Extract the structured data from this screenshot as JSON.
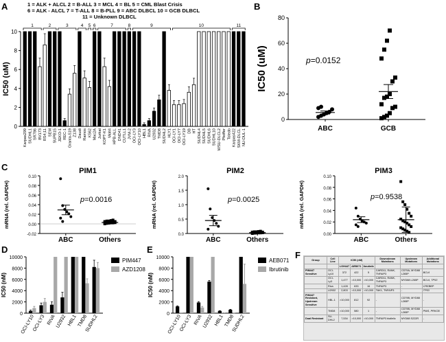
{
  "figure_labels": {
    "A": "A",
    "B": "B",
    "C": "C",
    "D": "D",
    "E": "E",
    "F": "F"
  },
  "legend_lines": [
    "1 = ALK + ALCL  2 = B-ALL  3 = MCL  4 = BL  5 = CML Blast Crisis",
    "6 = ALK - ALCL  7 = T-ALL  8 = B-PLL  9 = ABC DLBCL  10 = GCB DLBCL",
    "11 = Unknown DLBCL"
  ],
  "chart_data": [
    {
      "id": "A",
      "type": "bar",
      "title": "",
      "ylabel": "IC50 (uM)",
      "ylim": [
        0,
        10
      ],
      "yticks": [
        0,
        2,
        4,
        6,
        8,
        10
      ],
      "group_labels": [
        "1",
        "2",
        "3",
        "4",
        "5",
        "6",
        "7",
        "8",
        "9",
        "10",
        "11"
      ],
      "group_sizes": [
        4,
        3,
        4,
        2,
        1,
        1,
        6,
        1,
        8,
        12,
        3
      ],
      "categories": [
        "Karpas299",
        "SUDHL1",
        "SR786",
        "BV173",
        "RS4;11",
        "SEM",
        "SUPB15",
        "JEKO-1",
        "REC-1",
        "Granta-519",
        "Z138",
        "Daudi",
        "Ramos",
        "K562",
        "Mac2A",
        "Jurkat",
        "KOPT-K1",
        "Molt4",
        "HPB-ALL",
        "DND41",
        "CUTLL1",
        "JVM-2",
        "OCI-LY3",
        "OCI-LY10",
        "HBL1",
        "RIVA",
        "U2932",
        "TMD8",
        "SUDHL2",
        "HLY1",
        "OCI-LY1",
        "OCI-LY7",
        "OCI-LY19",
        "DB",
        "HT",
        "SUDHL4",
        "SUDHL5",
        "SUDHL6",
        "SUDHL10",
        "WSU-DLCL2",
        "Pfeiffer",
        "Toledo",
        "Karpas422",
        "SKM-DLCL",
        "NU-DUL-1"
      ],
      "values": [
        10,
        10,
        10,
        6.3,
        8.6,
        10,
        10,
        10,
        0.6,
        3.4,
        5.6,
        10,
        5.1,
        4.1,
        10,
        10,
        6.3,
        4.2,
        10,
        10,
        10,
        10,
        10,
        10,
        0.2,
        0.6,
        1.6,
        2.8,
        10,
        3.8,
        2.3,
        2.3,
        2.4,
        3.6,
        4.4,
        10,
        10,
        10,
        10,
        10,
        10,
        10,
        10,
        10,
        10
      ],
      "fill": [
        "black",
        "black",
        "black",
        "white",
        "white",
        "black",
        "black",
        "black",
        "black",
        "white",
        "white",
        "black",
        "white",
        "white",
        "black",
        "black",
        "white",
        "white",
        "black",
        "black",
        "black",
        "black",
        "black",
        "black",
        "black",
        "black",
        "black",
        "black",
        "black",
        "white",
        "white",
        "white",
        "white",
        "white",
        "white",
        "white",
        "white",
        "white",
        "white",
        "white",
        "white",
        "white",
        "black",
        "black",
        "black"
      ]
    },
    {
      "id": "B",
      "type": "scatter",
      "ylabel": "IC50 (uM)",
      "ylim": [
        0,
        80
      ],
      "yticks": [
        0,
        20,
        40,
        60,
        80
      ],
      "categories": [
        "ABC",
        "GCB"
      ],
      "series": [
        {
          "name": "ABC",
          "values": [
            2,
            3,
            4,
            5,
            6,
            8,
            9,
            10
          ]
        },
        {
          "name": "GCB",
          "values": [
            1,
            2,
            3,
            5,
            9,
            10,
            12,
            17,
            18,
            20,
            30,
            33,
            48,
            55,
            62,
            70
          ]
        }
      ],
      "means": [
        5.5,
        22
      ],
      "sem": [
        1.2,
        5.5
      ],
      "annotation": "p=0.0152"
    },
    {
      "id": "C1",
      "type": "scatter",
      "title": "PIM1",
      "ylabel": "mRNA (rel. GAPDH)",
      "ylim": [
        -0.02,
        0.1
      ],
      "yticks": [
        -0.02,
        0.0,
        0.02,
        0.04,
        0.06,
        0.08,
        0.1
      ],
      "ytick_labels": [
        "-0.02",
        "0.00",
        "0.02",
        "0.04",
        "0.06",
        "0.08",
        "0.10"
      ],
      "categories": [
        "ABC",
        "Others"
      ],
      "series": [
        {
          "name": "ABC",
          "values": [
            0.094,
            0.038,
            0.03,
            0.025,
            0.021,
            0.015,
            0.012,
            0.005
          ]
        },
        {
          "name": "Others",
          "values": [
            0.0,
            0.001,
            0.0015,
            0.002,
            0.002,
            0.0025,
            0.003,
            0.003,
            0.0035,
            0.004,
            0.004,
            0.005,
            0.005,
            0.006,
            0.006,
            0.007,
            0.008
          ]
        }
      ],
      "means": [
        0.029,
        0.003
      ],
      "sem": [
        0.01,
        0.001
      ],
      "annotation": "p=0.0016"
    },
    {
      "id": "C2",
      "type": "scatter",
      "title": "PIM2",
      "ylabel": "mRNA (rel. GAPDH)",
      "ylim": [
        0,
        2.0
      ],
      "yticks": [
        0,
        0.5,
        1.0,
        1.5,
        2.0
      ],
      "ytick_labels": [
        "0.0",
        "0.5",
        "1.0",
        "1.5",
        "2.0"
      ],
      "categories": [
        "ABC",
        "Others"
      ],
      "series": [
        {
          "name": "ABC",
          "values": [
            1.55,
            0.85,
            0.55,
            0.45,
            0.35,
            0.25,
            0.15
          ]
        },
        {
          "name": "Others",
          "values": [
            0.0,
            0.01,
            0.015,
            0.02,
            0.02,
            0.025,
            0.03,
            0.03,
            0.035,
            0.04,
            0.04,
            0.05,
            0.05,
            0.06,
            0.06,
            0.07,
            0.08
          ]
        }
      ],
      "means": [
        0.45,
        0.03
      ],
      "sem": [
        0.18,
        0.01
      ],
      "annotation": "p=0.0025"
    },
    {
      "id": "C3",
      "type": "scatter",
      "title": "PIM3",
      "ylabel": "mRNA (rel. GAPDH)",
      "ylim": [
        0,
        0.1
      ],
      "yticks": [
        0,
        0.02,
        0.04,
        0.06,
        0.08,
        0.1
      ],
      "ytick_labels": [
        "0.00",
        "0.02",
        "0.04",
        "0.06",
        "0.08",
        "0.10"
      ],
      "categories": [
        "ABC",
        "Others"
      ],
      "series": [
        {
          "name": "ABC",
          "values": [
            0.044,
            0.03,
            0.025,
            0.022,
            0.02,
            0.018,
            0.015,
            0.012
          ]
        },
        {
          "name": "Others",
          "values": [
            0.09,
            0.055,
            0.05,
            0.042,
            0.035,
            0.03,
            0.025,
            0.022,
            0.02,
            0.018,
            0.015,
            0.012,
            0.01,
            0.008,
            0.006,
            0.004,
            0.002
          ]
        }
      ],
      "means": [
        0.024,
        0.024
      ],
      "sem": [
        0.005,
        0.022
      ],
      "annotation": "p=0.9538"
    },
    {
      "id": "D",
      "type": "bar",
      "ylabel": "IC50 (nM)",
      "ylim": [
        0,
        10000
      ],
      "yticks": [
        0,
        2000,
        4000,
        6000,
        8000,
        10000
      ],
      "categories": [
        "OCI-LY10",
        "OCI-LY3",
        "RIVA",
        "U2932",
        "HBL1",
        "TMD8",
        "SUDHL2"
      ],
      "series": [
        {
          "name": "PIM447",
          "color": "#000000",
          "values": [
            400,
            1400,
            1500,
            2800,
            10000,
            10000,
            8200
          ],
          "err": [
            150,
            400,
            500,
            900,
            0,
            0,
            1200
          ]
        },
        {
          "name": "AZD1208",
          "color": "#a8a8a8",
          "values": [
            900,
            2000,
            10000,
            10000,
            10000,
            5300,
            8000
          ],
          "err": [
            300,
            600,
            0,
            0,
            0,
            800,
            1000
          ]
        }
      ]
    },
    {
      "id": "E",
      "type": "bar",
      "ylabel": "IC50 (nM)",
      "ylim": [
        0,
        10000
      ],
      "yticks": [
        0,
        2000,
        4000,
        6000,
        8000,
        10000
      ],
      "categories": [
        "OCI-LY10",
        "OCI-LY3",
        "RIVA",
        "U2932",
        "HBL1",
        "TMD8",
        "SUDHL2"
      ],
      "series": [
        {
          "name": "AEB071",
          "color": "#000000",
          "values": [
            1200,
            10000,
            1900,
            5600,
            400,
            600,
            10000
          ],
          "err": [
            100,
            0,
            150,
            200,
            50,
            80,
            0
          ]
        },
        {
          "name": "Ibrutinib",
          "color": "#a8a8a8",
          "values": [
            30,
            10000,
            1000,
            10000,
            50,
            20,
            5200
          ],
          "err": [
            10,
            0,
            200,
            0,
            10,
            5,
            3500
          ]
        }
      ]
    }
  ],
  "table_F": {
    "header_top": [
      "Group",
      "Cell Line",
      "IC50 (nM)",
      "Downstream Mutations",
      "Upstream Mutations",
      "Additional Mutations"
    ],
    "header_sub": [
      "LGH447",
      "AEB071",
      "Ibrutinib"
    ],
    "rows": [
      {
        "group": "PIM447 Sensitive",
        "line": "OCI-Ly10",
        "v1": "372",
        "v2": "422",
        "v3": "5",
        "down": "CARD11, RANK, TNFAIP3",
        "up": "CD79A, MYD88 L265P",
        "add": "BCL6"
      },
      {
        "group": "",
        "line": "OCI-Ly3",
        "v1": "1,477",
        "v2": ">10,000",
        "v3": ">10,000",
        "down": "CARD11, RANK, TNFAIP3",
        "up": "MYD88 L265P",
        "add": "BCL6, TP53"
      },
      {
        "group": "",
        "line": "Riva",
        "v1": "1,428",
        "v2": "633",
        "v3": "16",
        "down": "TNFAIP3",
        "up": "-",
        "add": "CREBBP"
      },
      {
        "group": "",
        "line": "U2932",
        "v1": "2,803",
        "v2": ">10,000",
        "v3": ">10,000",
        "down": "TAK1, TNFAIP3",
        "up": "-",
        "add": "TP53"
      },
      {
        "group": "PIM447 Resistant, Upstream Sensitive",
        "line": "HBL-1",
        "v1": ">10,000",
        "v2": "812",
        "v3": "92",
        "down": "-",
        "up": "CD79B, MYD88 L265P",
        "add": "-"
      },
      {
        "group": "",
        "line": "TMD8",
        "v1": ">10,000",
        "v2": "580",
        "v3": "1",
        "down": "-",
        "up": "CD79B, MYD88 L265P",
        "add": "PIM1, PRKCB"
      },
      {
        "group": "Dual Resistant",
        "line": "SU-DHL2",
        "v1": "7,534",
        "v2": ">10,000",
        "v3": ">10,000",
        "down": "TNFAIP3 biallelic",
        "up": "MYD88 S222R",
        "add": "-"
      }
    ]
  }
}
